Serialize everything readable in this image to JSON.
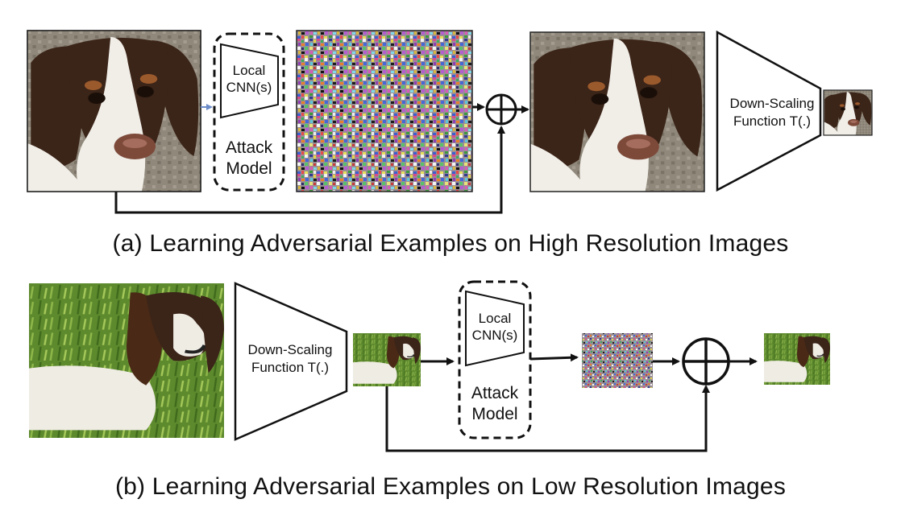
{
  "top_row": {
    "caption": "(a) Learning Adversarial Examples on High Resolution Images",
    "attack_model": {
      "network_label_line1": "Local",
      "network_label_line2": "CNN(s)",
      "model_label_line1": "Attack",
      "model_label_line2": "Model"
    },
    "downscaler": {
      "label_line1": "Down-Scaling",
      "label_line2": "Function T(.)"
    },
    "adder_symbol": "⊕"
  },
  "bottom_row": {
    "caption": "(b) Learning Adversarial Examples on Low Resolution Images",
    "downscaler": {
      "label_line1": "Down-Scaling",
      "label_line2": "Function T(.)"
    },
    "attack_model": {
      "network_label_line1": "Local",
      "network_label_line2": "CNN(s)",
      "model_label_line1": "Attack",
      "model_label_line2": "Model"
    },
    "adder_symbol": "⊕"
  },
  "colors": {
    "dog_brown": "#3b2418",
    "dog_white": "#f1eee8",
    "grass_green": "#5e8a2e",
    "carpet_gray": "#8b8375",
    "arrow_black": "#111111",
    "input_arrow_blue": "#6b8cc8"
  }
}
